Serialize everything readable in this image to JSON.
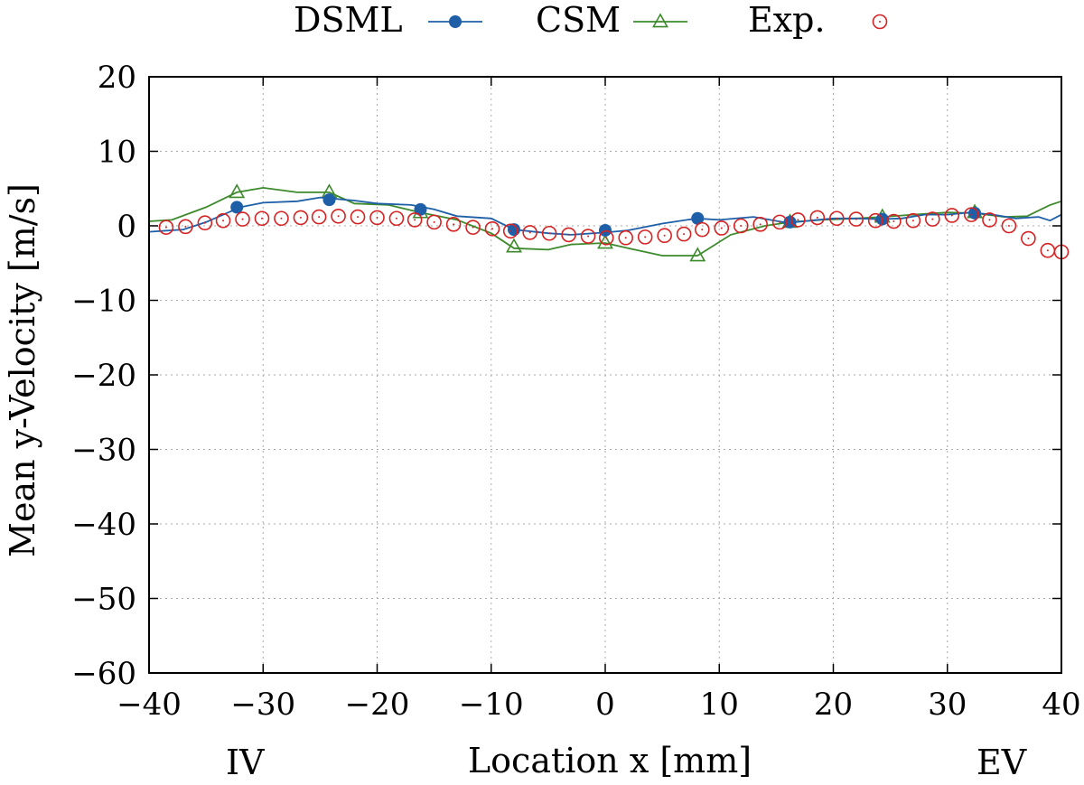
{
  "chart_data": {
    "type": "line",
    "xlabel": "Location x [mm]",
    "ylabel": "Mean y-Velocity [m/s]",
    "xlim": [
      -40,
      40
    ],
    "ylim": [
      -60,
      20
    ],
    "xticks": [
      -40,
      -30,
      -20,
      -10,
      0,
      10,
      20,
      30,
      40
    ],
    "yticks": [
      -60,
      -50,
      -40,
      -30,
      -20,
      -10,
      0,
      10,
      20
    ],
    "xtick_labels": [
      "−40",
      "−30",
      "−20",
      "−10",
      "0",
      "10",
      "20",
      "30",
      "40"
    ],
    "ytick_labels": [
      "−60",
      "−50",
      "−40",
      "−30",
      "−20",
      "−10",
      "0",
      "10",
      "20"
    ],
    "grid": true,
    "legend_position": "top",
    "annotations": {
      "left": "IV",
      "right": "EV"
    },
    "series": [
      {
        "name": "DSML",
        "color": "#1f5fa8",
        "line": {
          "x": [
            -40,
            -37,
            -35,
            -32,
            -30,
            -27,
            -25,
            -22,
            -20,
            -17,
            -15,
            -13,
            -10,
            -8,
            -5,
            -3,
            0,
            2,
            5,
            8,
            10,
            13,
            16,
            18,
            20,
            22,
            24,
            26,
            28,
            30,
            32,
            34,
            36,
            38,
            39,
            40
          ],
          "y": [
            -0.8,
            -0.5,
            0.5,
            2.5,
            3.1,
            3.3,
            3.8,
            3.4,
            3.0,
            2.8,
            2.2,
            1.3,
            1.0,
            -0.5,
            -1.0,
            -1.2,
            -0.9,
            -0.6,
            0.3,
            1.0,
            0.8,
            1.2,
            0.4,
            0.7,
            1.0,
            1.0,
            0.9,
            1.0,
            1.5,
            1.5,
            1.8,
            1.5,
            1.0,
            1.2,
            0.7,
            1.5
          ]
        },
        "markers": {
          "x": [
            -32.3,
            -24.2,
            -16.2,
            -8.0,
            0.0,
            8.1,
            16.2,
            24.3,
            32.4
          ],
          "y": [
            2.5,
            3.5,
            2.2,
            -0.5,
            -0.6,
            1.0,
            0.5,
            0.9,
            1.7
          ]
        }
      },
      {
        "name": "CSM",
        "color": "#3d8a2c",
        "line": {
          "x": [
            -40,
            -38,
            -35,
            -32.3,
            -30,
            -27,
            -24.2,
            -22,
            -19,
            -16.2,
            -13,
            -10,
            -8,
            -5,
            -3,
            0,
            2,
            5,
            8.1,
            11,
            14,
            16.2,
            19,
            22,
            24.3,
            27,
            30,
            32.4,
            35,
            37,
            39,
            40
          ],
          "y": [
            0.6,
            0.8,
            2.5,
            4.5,
            5.1,
            4.5,
            4.5,
            3.0,
            2.8,
            1.8,
            0.8,
            -1.0,
            -3.0,
            -3.2,
            -2.5,
            -2.3,
            -3.0,
            -4.0,
            -4.0,
            -1.2,
            0.0,
            0.5,
            0.8,
            1.0,
            1.2,
            1.5,
            1.8,
            1.7,
            1.2,
            1.3,
            2.8,
            3.3
          ]
        },
        "markers": {
          "x": [
            -32.3,
            -24.2,
            -16.2,
            -8.0,
            0.0,
            8.1,
            16.2,
            24.3,
            32.4
          ],
          "y": [
            4.5,
            4.5,
            1.8,
            -2.8,
            -2.3,
            -4.0,
            0.5,
            1.2,
            1.8
          ]
        }
      },
      {
        "name": "Exp.",
        "color": "#d62222",
        "points": {
          "x": [
            -38.5,
            -36.8,
            -35.1,
            -33.5,
            -31.8,
            -30.1,
            -28.4,
            -26.7,
            -25.1,
            -23.4,
            -21.7,
            -20.0,
            -18.3,
            -16.7,
            -15.0,
            -13.3,
            -11.6,
            -9.9,
            -8.3,
            -6.6,
            -4.9,
            -3.2,
            -1.5,
            0.1,
            1.8,
            3.5,
            5.2,
            6.9,
            8.5,
            10.2,
            11.9,
            13.6,
            15.3,
            16.9,
            18.6,
            20.3,
            22.0,
            23.7,
            25.3,
            27.0,
            28.7,
            30.4,
            32.1,
            33.7,
            35.4,
            37.1,
            38.8,
            40.0
          ],
          "y": [
            -0.2,
            -0.1,
            0.4,
            0.7,
            0.9,
            1.0,
            1.0,
            1.1,
            1.2,
            1.3,
            1.2,
            1.1,
            1.0,
            0.8,
            0.5,
            0.2,
            -0.2,
            -0.4,
            -0.7,
            -0.9,
            -1.0,
            -1.2,
            -1.4,
            -1.6,
            -1.6,
            -1.5,
            -1.3,
            -1.1,
            -0.5,
            -0.3,
            0.0,
            0.2,
            0.5,
            0.8,
            1.1,
            1.0,
            0.9,
            0.7,
            0.6,
            0.7,
            0.9,
            1.4,
            1.5,
            0.8,
            0.0,
            -1.7,
            -3.3,
            -3.5
          ]
        }
      }
    ]
  }
}
